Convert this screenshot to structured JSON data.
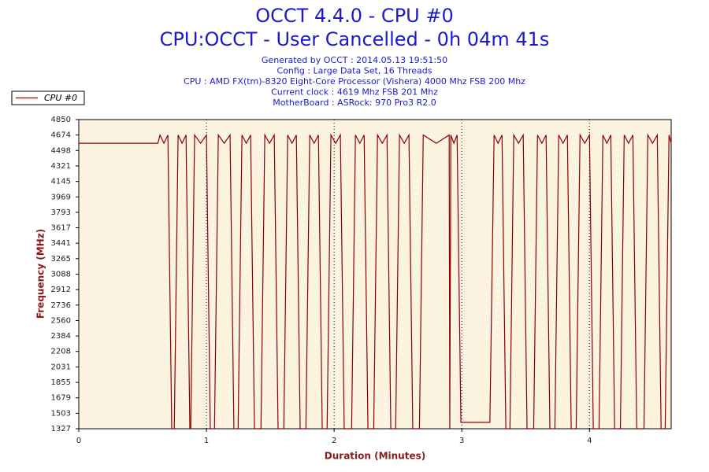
{
  "chart_data": {
    "type": "line",
    "title": "OCCT 4.4.0 - CPU #0",
    "subtitle": "CPU:OCCT - User Cancelled - 0h 04m 41s",
    "info": [
      "Generated by OCCT : 2014.05.13 19:51:50",
      "Config : Large Data Set, 16 Threads",
      "CPU : AMD FX(tm)-8320 Eight-Core Processor (Vishera) 4000 Mhz FSB 200 Mhz",
      "Current clock : 4619 Mhz FSB 201 Mhz",
      "MotherBoard : ASRock: 970 Pro3 R2.0"
    ],
    "x_label": "Duration (Minutes)",
    "y_label": "Frequency (MHz)",
    "xlim": [
      0,
      4.64
    ],
    "xticks": [
      0,
      1,
      2,
      3,
      4
    ],
    "ylim": [
      1327,
      4850
    ],
    "yticks": [
      1327,
      1503,
      1679,
      1855,
      2031,
      2208,
      2384,
      2560,
      2736,
      2912,
      3088,
      3265,
      3441,
      3617,
      3793,
      3969,
      4145,
      4321,
      4498,
      4674,
      4850
    ],
    "grid": true,
    "legend": "top-left",
    "x": [
      0,
      0.62,
      0.636,
      0.667,
      0.698,
      0.728,
      0.748,
      0.778,
      0.809,
      0.84,
      0.87,
      0.877,
      0.907,
      0.954,
      1.0,
      1.03,
      1.063,
      1.093,
      1.139,
      1.185,
      1.215,
      1.248,
      1.278,
      1.312,
      1.346,
      1.376,
      1.427,
      1.457,
      1.494,
      1.531,
      1.561,
      1.606,
      1.636,
      1.67,
      1.704,
      1.734,
      1.779,
      1.809,
      1.843,
      1.877,
      1.907,
      1.945,
      1.975,
      2.012,
      2.049,
      2.079,
      2.137,
      2.167,
      2.201,
      2.235,
      2.265,
      2.31,
      2.34,
      2.377,
      2.414,
      2.444,
      2.482,
      2.512,
      2.549,
      2.586,
      2.616,
      2.668,
      2.698,
      2.8,
      2.901,
      2.906,
      2.914,
      2.938,
      2.963,
      2.993,
      3.22,
      3.253,
      3.284,
      3.315,
      3.345,
      3.377,
      3.407,
      3.444,
      3.481,
      3.511,
      3.563,
      3.593,
      3.627,
      3.66,
      3.69,
      3.729,
      3.759,
      3.793,
      3.827,
      3.857,
      3.896,
      3.926,
      3.963,
      4.0,
      4.03,
      4.075,
      4.105,
      4.136,
      4.167,
      4.197,
      4.242,
      4.272,
      4.306,
      4.34,
      4.37,
      4.427,
      4.457,
      4.494,
      4.531,
      4.561,
      4.593,
      4.623,
      4.64
    ],
    "series": [
      {
        "name": "CPU #0",
        "color": "#8b0000",
        "values": [
          4580,
          4580,
          4674,
          4580,
          4674,
          1327,
          1327,
          4674,
          4580,
          4674,
          1327,
          1327,
          4674,
          4580,
          4674,
          1327,
          1327,
          4674,
          4580,
          4674,
          1327,
          1327,
          4674,
          4580,
          4674,
          1327,
          1327,
          4674,
          4580,
          4674,
          1327,
          1327,
          4674,
          4580,
          4674,
          1327,
          1327,
          4674,
          4580,
          4674,
          1327,
          1327,
          4674,
          4580,
          4674,
          1327,
          1327,
          4674,
          4580,
          4674,
          1327,
          1327,
          4674,
          4580,
          4674,
          1327,
          1327,
          4674,
          4580,
          4674,
          1327,
          1327,
          4674,
          4580,
          4674,
          1327,
          4674,
          4580,
          4674,
          1400,
          1400,
          4674,
          4580,
          4674,
          1327,
          1327,
          4674,
          4580,
          4674,
          1327,
          1327,
          4674,
          4580,
          4674,
          1327,
          1327,
          4674,
          4580,
          4674,
          1327,
          1327,
          4674,
          4580,
          4674,
          1327,
          1327,
          4674,
          4580,
          4674,
          1327,
          1327,
          4674,
          4580,
          4674,
          1327,
          1327,
          4674,
          4580,
          4674,
          1327,
          1327,
          4674,
          4580
        ]
      }
    ]
  }
}
